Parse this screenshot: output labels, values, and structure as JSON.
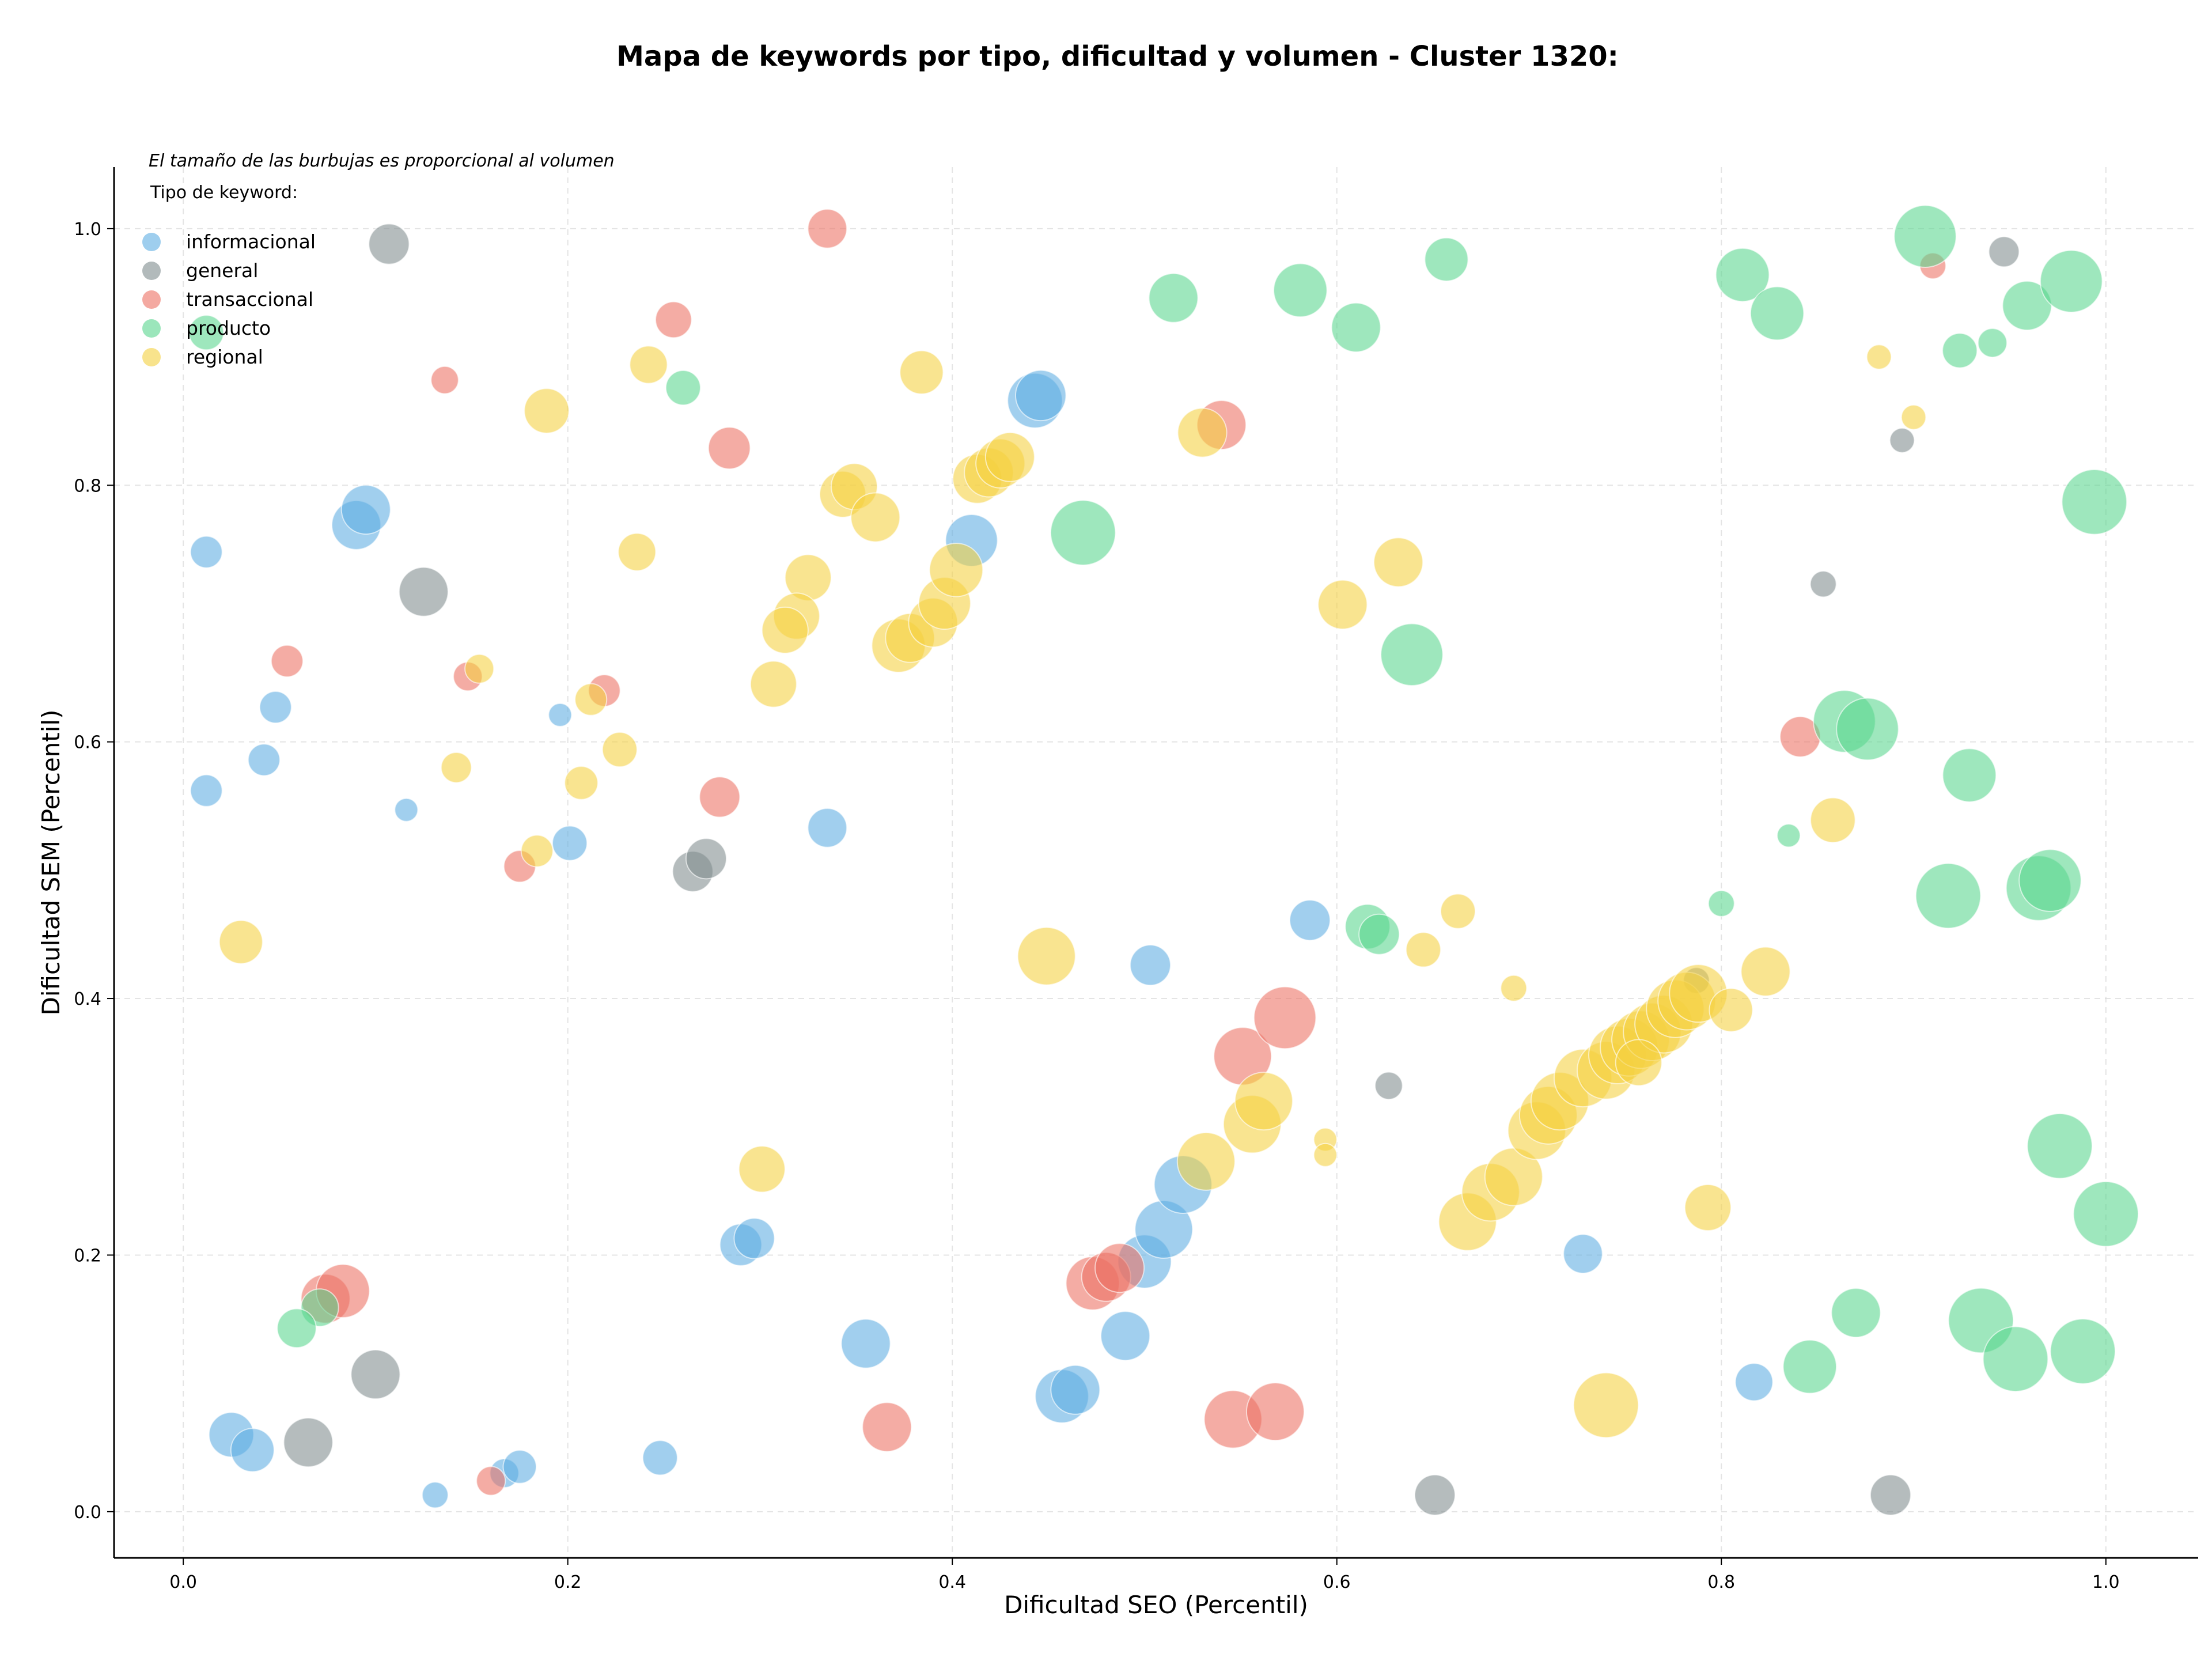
{
  "chart_data": {
    "type": "scatter",
    "title": "Mapa de keywords por tipo, dificultad y volumen - Cluster 1320:",
    "xlabel": "Dificultad SEO (Percentil)",
    "ylabel": "Dificultad SEM (Percentil)",
    "xlim": [
      -0.036,
      1.048
    ],
    "ylim": [
      -0.036,
      1.048
    ],
    "xticks": [
      "0.0",
      "0.2",
      "0.4",
      "0.6",
      "0.8",
      "1.0"
    ],
    "yticks": [
      "0.0",
      "0.2",
      "0.4",
      "0.6",
      "0.8",
      "1.0"
    ],
    "xtick_values": [
      0,
      0.2,
      0.4,
      0.6,
      0.8,
      1.0
    ],
    "ytick_values": [
      0,
      0.2,
      0.4,
      0.6,
      0.8,
      1.0
    ],
    "grid": true,
    "legend_position": "top-left",
    "annotation": "El tamaño de las burbujas es proporcional al volumen",
    "legend_title": "Tipo de keyword:",
    "series": [
      {
        "name": "informacional",
        "color": "#5DADE2",
        "points": [
          {
            "x": 0.012,
            "y": 0.748,
            "s": 22
          },
          {
            "x": 0.09,
            "y": 0.769,
            "s": 34
          },
          {
            "x": 0.095,
            "y": 0.781,
            "s": 34
          },
          {
            "x": 0.048,
            "y": 0.627,
            "s": 22
          },
          {
            "x": 0.042,
            "y": 0.586,
            "s": 22
          },
          {
            "x": 0.012,
            "y": 0.562,
            "s": 22
          },
          {
            "x": 0.196,
            "y": 0.621,
            "s": 16
          },
          {
            "x": 0.116,
            "y": 0.547,
            "s": 16
          },
          {
            "x": 0.201,
            "y": 0.521,
            "s": 24
          },
          {
            "x": 0.335,
            "y": 0.533,
            "s": 27
          },
          {
            "x": 0.443,
            "y": 0.866,
            "s": 38
          },
          {
            "x": 0.446,
            "y": 0.87,
            "s": 35
          },
          {
            "x": 0.41,
            "y": 0.757,
            "s": 36
          },
          {
            "x": 0.025,
            "y": 0.06,
            "s": 31
          },
          {
            "x": 0.036,
            "y": 0.048,
            "s": 30
          },
          {
            "x": 0.131,
            "y": 0.013,
            "s": 18
          },
          {
            "x": 0.167,
            "y": 0.03,
            "s": 20
          },
          {
            "x": 0.175,
            "y": 0.035,
            "s": 23
          },
          {
            "x": 0.248,
            "y": 0.042,
            "s": 24
          },
          {
            "x": 0.29,
            "y": 0.208,
            "s": 29
          },
          {
            "x": 0.297,
            "y": 0.213,
            "s": 28
          },
          {
            "x": 0.355,
            "y": 0.131,
            "s": 34
          },
          {
            "x": 0.457,
            "y": 0.09,
            "s": 37
          },
          {
            "x": 0.464,
            "y": 0.095,
            "s": 34
          },
          {
            "x": 0.49,
            "y": 0.137,
            "s": 34
          },
          {
            "x": 0.5,
            "y": 0.195,
            "s": 37
          },
          {
            "x": 0.51,
            "y": 0.22,
            "s": 40
          },
          {
            "x": 0.52,
            "y": 0.255,
            "s": 40
          },
          {
            "x": 0.503,
            "y": 0.426,
            "s": 28
          },
          {
            "x": 0.586,
            "y": 0.461,
            "s": 28
          },
          {
            "x": 0.728,
            "y": 0.201,
            "s": 27
          },
          {
            "x": 0.817,
            "y": 0.101,
            "s": 26
          }
        ]
      },
      {
        "name": "general",
        "color": "#7F8C8D",
        "points": [
          {
            "x": 0.107,
            "y": 0.988,
            "s": 28
          },
          {
            "x": 0.125,
            "y": 0.717,
            "s": 34
          },
          {
            "x": 0.265,
            "y": 0.499,
            "s": 28
          },
          {
            "x": 0.272,
            "y": 0.509,
            "s": 28
          },
          {
            "x": 0.1,
            "y": 0.107,
            "s": 34
          },
          {
            "x": 0.065,
            "y": 0.054,
            "s": 34
          },
          {
            "x": 0.651,
            "y": 0.013,
            "s": 28
          },
          {
            "x": 0.627,
            "y": 0.332,
            "s": 19
          },
          {
            "x": 0.787,
            "y": 0.414,
            "s": 18
          },
          {
            "x": 0.853,
            "y": 0.723,
            "s": 18
          },
          {
            "x": 0.894,
            "y": 0.835,
            "s": 17
          },
          {
            "x": 0.947,
            "y": 0.982,
            "s": 21
          },
          {
            "x": 0.888,
            "y": 0.013,
            "s": 28
          }
        ]
      },
      {
        "name": "transaccional",
        "color": "#EC7063",
        "points": [
          {
            "x": 0.335,
            "y": 1.0,
            "s": 27
          },
          {
            "x": 0.255,
            "y": 0.929,
            "s": 25
          },
          {
            "x": 0.136,
            "y": 0.882,
            "s": 19
          },
          {
            "x": 0.284,
            "y": 0.829,
            "s": 29
          },
          {
            "x": 0.054,
            "y": 0.663,
            "s": 22
          },
          {
            "x": 0.148,
            "y": 0.651,
            "s": 20
          },
          {
            "x": 0.219,
            "y": 0.64,
            "s": 22
          },
          {
            "x": 0.279,
            "y": 0.557,
            "s": 28
          },
          {
            "x": 0.175,
            "y": 0.503,
            "s": 22
          },
          {
            "x": 0.54,
            "y": 0.847,
            "s": 34
          },
          {
            "x": 0.074,
            "y": 0.166,
            "s": 34
          },
          {
            "x": 0.083,
            "y": 0.172,
            "s": 37
          },
          {
            "x": 0.16,
            "y": 0.024,
            "s": 20
          },
          {
            "x": 0.366,
            "y": 0.066,
            "s": 34
          },
          {
            "x": 0.473,
            "y": 0.178,
            "s": 37
          },
          {
            "x": 0.48,
            "y": 0.183,
            "s": 34
          },
          {
            "x": 0.487,
            "y": 0.19,
            "s": 34
          },
          {
            "x": 0.546,
            "y": 0.072,
            "s": 40
          },
          {
            "x": 0.568,
            "y": 0.078,
            "s": 40
          },
          {
            "x": 0.551,
            "y": 0.355,
            "s": 40
          },
          {
            "x": 0.573,
            "y": 0.385,
            "s": 43
          },
          {
            "x": 0.841,
            "y": 0.604,
            "s": 28
          },
          {
            "x": 0.91,
            "y": 0.971,
            "s": 18
          }
        ]
      },
      {
        "name": "producto",
        "color": "#58D68D",
        "points": [
          {
            "x": 0.012,
            "y": 0.919,
            "s": 24
          },
          {
            "x": 0.26,
            "y": 0.876,
            "s": 24
          },
          {
            "x": 0.515,
            "y": 0.946,
            "s": 34
          },
          {
            "x": 0.581,
            "y": 0.952,
            "s": 37
          },
          {
            "x": 0.61,
            "y": 0.923,
            "s": 34
          },
          {
            "x": 0.657,
            "y": 0.976,
            "s": 30
          },
          {
            "x": 0.468,
            "y": 0.763,
            "s": 45
          },
          {
            "x": 0.639,
            "y": 0.668,
            "s": 43
          },
          {
            "x": 0.616,
            "y": 0.456,
            "s": 31
          },
          {
            "x": 0.622,
            "y": 0.45,
            "s": 28
          },
          {
            "x": 0.071,
            "y": 0.159,
            "s": 26
          },
          {
            "x": 0.059,
            "y": 0.143,
            "s": 27
          },
          {
            "x": 0.811,
            "y": 0.964,
            "s": 37
          },
          {
            "x": 0.829,
            "y": 0.934,
            "s": 37
          },
          {
            "x": 0.906,
            "y": 0.994,
            "s": 43
          },
          {
            "x": 0.959,
            "y": 0.94,
            "s": 34
          },
          {
            "x": 0.982,
            "y": 0.959,
            "s": 43
          },
          {
            "x": 0.924,
            "y": 0.905,
            "s": 24
          },
          {
            "x": 0.941,
            "y": 0.911,
            "s": 20
          },
          {
            "x": 0.994,
            "y": 0.787,
            "s": 45
          },
          {
            "x": 0.864,
            "y": 0.616,
            "s": 43
          },
          {
            "x": 0.876,
            "y": 0.61,
            "s": 43
          },
          {
            "x": 0.929,
            "y": 0.574,
            "s": 37
          },
          {
            "x": 0.835,
            "y": 0.527,
            "s": 16
          },
          {
            "x": 0.8,
            "y": 0.474,
            "s": 18
          },
          {
            "x": 0.918,
            "y": 0.48,
            "s": 45
          },
          {
            "x": 0.965,
            "y": 0.486,
            "s": 45
          },
          {
            "x": 0.971,
            "y": 0.492,
            "s": 43
          },
          {
            "x": 0.976,
            "y": 0.285,
            "s": 45
          },
          {
            "x": 1.0,
            "y": 0.232,
            "s": 45
          },
          {
            "x": 0.87,
            "y": 0.155,
            "s": 34
          },
          {
            "x": 0.846,
            "y": 0.113,
            "s": 37
          },
          {
            "x": 0.935,
            "y": 0.149,
            "s": 45
          },
          {
            "x": 0.953,
            "y": 0.119,
            "s": 45
          },
          {
            "x": 0.988,
            "y": 0.125,
            "s": 45
          }
        ]
      },
      {
        "name": "regional",
        "color": "#F4D03F",
        "points": [
          {
            "x": 0.189,
            "y": 0.858,
            "s": 31
          },
          {
            "x": 0.242,
            "y": 0.894,
            "s": 26
          },
          {
            "x": 0.236,
            "y": 0.748,
            "s": 26
          },
          {
            "x": 0.154,
            "y": 0.657,
            "s": 20
          },
          {
            "x": 0.212,
            "y": 0.633,
            "s": 22
          },
          {
            "x": 0.142,
            "y": 0.58,
            "s": 21
          },
          {
            "x": 0.207,
            "y": 0.568,
            "s": 23
          },
          {
            "x": 0.227,
            "y": 0.594,
            "s": 24
          },
          {
            "x": 0.184,
            "y": 0.515,
            "s": 22
          },
          {
            "x": 0.03,
            "y": 0.444,
            "s": 30
          },
          {
            "x": 0.384,
            "y": 0.888,
            "s": 30
          },
          {
            "x": 0.343,
            "y": 0.793,
            "s": 32
          },
          {
            "x": 0.349,
            "y": 0.799,
            "s": 32
          },
          {
            "x": 0.36,
            "y": 0.775,
            "s": 34
          },
          {
            "x": 0.413,
            "y": 0.805,
            "s": 34
          },
          {
            "x": 0.419,
            "y": 0.81,
            "s": 34
          },
          {
            "x": 0.425,
            "y": 0.817,
            "s": 34
          },
          {
            "x": 0.43,
            "y": 0.822,
            "s": 34
          },
          {
            "x": 0.325,
            "y": 0.728,
            "s": 32
          },
          {
            "x": 0.319,
            "y": 0.698,
            "s": 32
          },
          {
            "x": 0.313,
            "y": 0.687,
            "s": 32
          },
          {
            "x": 0.307,
            "y": 0.645,
            "s": 32
          },
          {
            "x": 0.372,
            "y": 0.675,
            "s": 37
          },
          {
            "x": 0.378,
            "y": 0.681,
            "s": 34
          },
          {
            "x": 0.39,
            "y": 0.693,
            "s": 34
          },
          {
            "x": 0.396,
            "y": 0.708,
            "s": 36
          },
          {
            "x": 0.402,
            "y": 0.734,
            "s": 37
          },
          {
            "x": 0.53,
            "y": 0.841,
            "s": 34
          },
          {
            "x": 0.632,
            "y": 0.74,
            "s": 34
          },
          {
            "x": 0.603,
            "y": 0.707,
            "s": 34
          },
          {
            "x": 0.449,
            "y": 0.433,
            "s": 40
          },
          {
            "x": 0.301,
            "y": 0.267,
            "s": 32
          },
          {
            "x": 0.532,
            "y": 0.273,
            "s": 40
          },
          {
            "x": 0.556,
            "y": 0.302,
            "s": 40
          },
          {
            "x": 0.562,
            "y": 0.32,
            "s": 40
          },
          {
            "x": 0.663,
            "y": 0.468,
            "s": 24
          },
          {
            "x": 0.645,
            "y": 0.438,
            "s": 24
          },
          {
            "x": 0.692,
            "y": 0.408,
            "s": 18
          },
          {
            "x": 0.594,
            "y": 0.29,
            "s": 16
          },
          {
            "x": 0.594,
            "y": 0.278,
            "s": 16
          },
          {
            "x": 0.668,
            "y": 0.226,
            "s": 40
          },
          {
            "x": 0.68,
            "y": 0.249,
            "s": 40
          },
          {
            "x": 0.692,
            "y": 0.261,
            "s": 40
          },
          {
            "x": 0.704,
            "y": 0.297,
            "s": 40
          },
          {
            "x": 0.71,
            "y": 0.309,
            "s": 40
          },
          {
            "x": 0.716,
            "y": 0.32,
            "s": 40
          },
          {
            "x": 0.728,
            "y": 0.338,
            "s": 40
          },
          {
            "x": 0.74,
            "y": 0.344,
            "s": 40
          },
          {
            "x": 0.746,
            "y": 0.356,
            "s": 40
          },
          {
            "x": 0.752,
            "y": 0.362,
            "s": 40
          },
          {
            "x": 0.758,
            "y": 0.368,
            "s": 40
          },
          {
            "x": 0.764,
            "y": 0.374,
            "s": 40
          },
          {
            "x": 0.77,
            "y": 0.38,
            "s": 40
          },
          {
            "x": 0.776,
            "y": 0.392,
            "s": 40
          },
          {
            "x": 0.782,
            "y": 0.398,
            "s": 40
          },
          {
            "x": 0.788,
            "y": 0.404,
            "s": 40
          },
          {
            "x": 0.757,
            "y": 0.35,
            "s": 32
          },
          {
            "x": 0.805,
            "y": 0.391,
            "s": 30
          },
          {
            "x": 0.823,
            "y": 0.421,
            "s": 34
          },
          {
            "x": 0.793,
            "y": 0.237,
            "s": 32
          },
          {
            "x": 0.74,
            "y": 0.083,
            "s": 45
          },
          {
            "x": 0.858,
            "y": 0.539,
            "s": 31
          },
          {
            "x": 0.882,
            "y": 0.9,
            "s": 17
          },
          {
            "x": 0.9,
            "y": 0.853,
            "s": 17
          }
        ]
      }
    ]
  }
}
